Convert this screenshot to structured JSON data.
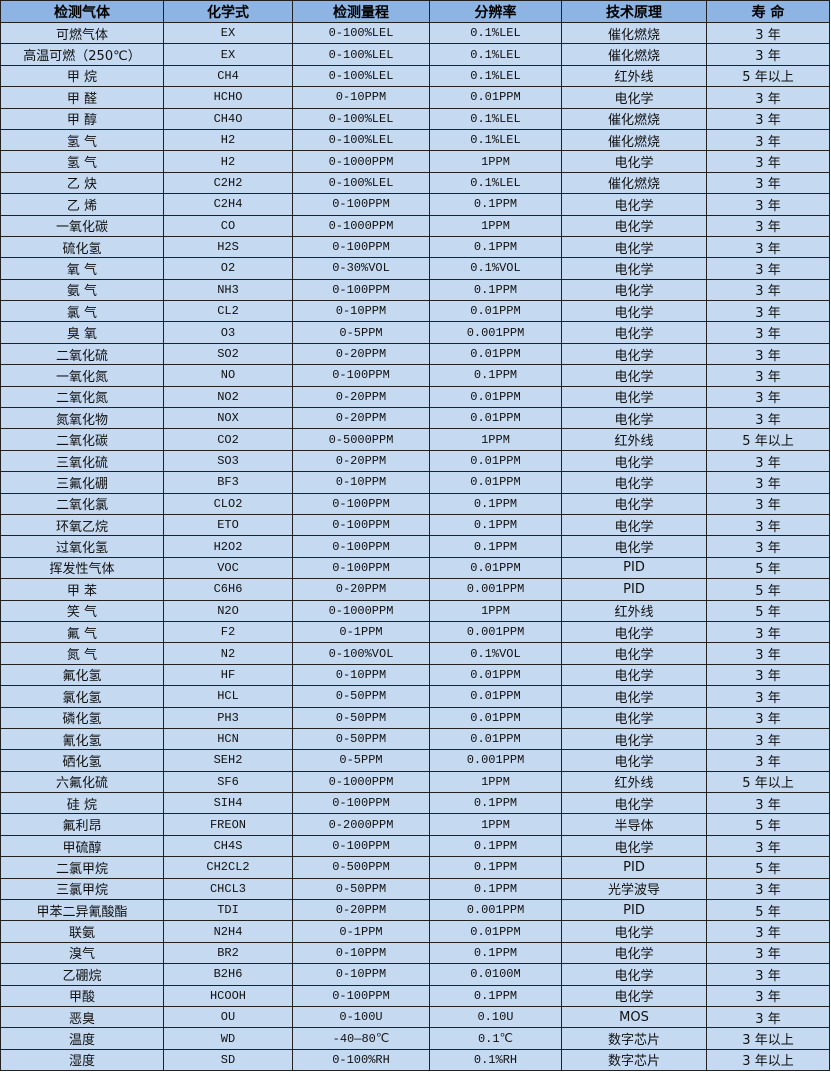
{
  "headers": [
    "检测气体",
    "化学式",
    "检测量程",
    "分辨率",
    "技术原理",
    "寿 命"
  ],
  "rows": [
    [
      "可燃气体",
      "EX",
      "0-100%LEL",
      "0.1%LEL",
      "催化燃烧",
      "3 年"
    ],
    [
      "高温可燃（250℃）",
      "EX",
      "0-100%LEL",
      "0.1%LEL",
      "催化燃烧",
      "3 年"
    ],
    [
      "甲 烷",
      "CH4",
      "0-100%LEL",
      "0.1%LEL",
      "红外线",
      "5 年以上"
    ],
    [
      "甲 醛",
      "HCHO",
      "0-10PPM",
      "0.01PPM",
      "电化学",
      "3 年"
    ],
    [
      "甲 醇",
      "CH4O",
      "0-100%LEL",
      "0.1%LEL",
      "催化燃烧",
      "3 年"
    ],
    [
      "氢 气",
      "H2",
      "0-100%LEL",
      "0.1%LEL",
      "催化燃烧",
      "3 年"
    ],
    [
      "氢 气",
      "H2",
      "0-1000PPM",
      "1PPM",
      "电化学",
      "3 年"
    ],
    [
      "乙 炔",
      "C2H2",
      "0-100%LEL",
      "0.1%LEL",
      "催化燃烧",
      "3 年"
    ],
    [
      "乙 烯",
      "C2H4",
      "0-100PPM",
      "0.1PPM",
      "电化学",
      "3 年"
    ],
    [
      "一氧化碳",
      "CO",
      "0-1000PPM",
      "1PPM",
      "电化学",
      "3 年"
    ],
    [
      "硫化氢",
      "H2S",
      "0-100PPM",
      "0.1PPM",
      "电化学",
      "3 年"
    ],
    [
      "氧 气",
      "O2",
      "0-30%VOL",
      "0.1%VOL",
      "电化学",
      "3 年"
    ],
    [
      "氨 气",
      "NH3",
      "0-100PPM",
      "0.1PPM",
      "电化学",
      "3 年"
    ],
    [
      "氯 气",
      "CL2",
      "0-10PPM",
      "0.01PPM",
      "电化学",
      "3 年"
    ],
    [
      "臭 氧",
      "O3",
      "0-5PPM",
      "0.001PPM",
      "电化学",
      "3 年"
    ],
    [
      "二氧化硫",
      "SO2",
      "0-20PPM",
      "0.01PPM",
      "电化学",
      "3 年"
    ],
    [
      "一氧化氮",
      "NO",
      "0-100PPM",
      "0.1PPM",
      "电化学",
      "3 年"
    ],
    [
      "二氧化氮",
      "NO2",
      "0-20PPM",
      "0.01PPM",
      "电化学",
      "3 年"
    ],
    [
      "氮氧化物",
      "NOX",
      "0-20PPM",
      "0.01PPM",
      "电化学",
      "3 年"
    ],
    [
      "二氧化碳",
      "CO2",
      "0-5000PPM",
      "1PPM",
      "红外线",
      "5 年以上"
    ],
    [
      "三氧化硫",
      "SO3",
      "0-20PPM",
      "0.01PPM",
      "电化学",
      "3 年"
    ],
    [
      "三氟化硼",
      "BF3",
      "0-10PPM",
      "0.01PPM",
      "电化学",
      "3 年"
    ],
    [
      "二氧化氯",
      "CLO2",
      "0-100PPM",
      "0.1PPM",
      "电化学",
      "3 年"
    ],
    [
      "环氧乙烷",
      "ETO",
      "0-100PPM",
      "0.1PPM",
      "电化学",
      "3 年"
    ],
    [
      "过氧化氢",
      "H2O2",
      "0-100PPM",
      "0.1PPM",
      "电化学",
      "3 年"
    ],
    [
      "挥发性气体",
      "VOC",
      "0-100PPM",
      "0.01PPM",
      "PID",
      "5 年"
    ],
    [
      "甲 苯",
      "C6H6",
      "0-20PPM",
      "0.001PPM",
      "PID",
      "5 年"
    ],
    [
      "笑 气",
      "N2O",
      "0-1000PPM",
      "1PPM",
      "红外线",
      "5 年"
    ],
    [
      "氟 气",
      "F2",
      "0-1PPM",
      "0.001PPM",
      "电化学",
      "3 年"
    ],
    [
      "氮 气",
      "N2",
      "0-100%VOL",
      "0.1%VOL",
      "电化学",
      "3 年"
    ],
    [
      "氟化氢",
      "HF",
      "0-10PPM",
      "0.01PPM",
      "电化学",
      "3 年"
    ],
    [
      "氯化氢",
      "HCL",
      "0-50PPM",
      "0.01PPM",
      "电化学",
      "3 年"
    ],
    [
      "磷化氢",
      "PH3",
      "0-50PPM",
      "0.01PPM",
      "电化学",
      "3 年"
    ],
    [
      "氰化氢",
      "HCN",
      "0-50PPM",
      "0.01PPM",
      "电化学",
      "3 年"
    ],
    [
      "硒化氢",
      "SEH2",
      "0-5PPM",
      "0.001PPM",
      "电化学",
      "3 年"
    ],
    [
      "六氟化硫",
      "SF6",
      "0-1000PPM",
      "1PPM",
      "红外线",
      "5 年以上"
    ],
    [
      "硅 烷",
      "SIH4",
      "0-100PPM",
      "0.1PPM",
      "电化学",
      "3 年"
    ],
    [
      "氟利昂",
      "FREON",
      "0-2000PPM",
      "1PPM",
      "半导体",
      "5 年"
    ],
    [
      "甲硫醇",
      "CH4S",
      "0-100PPM",
      "0.1PPM",
      "电化学",
      "3 年"
    ],
    [
      "二氯甲烷",
      "CH2CL2",
      "0-500PPM",
      "0.1PPM",
      "PID",
      "5 年"
    ],
    [
      "三氯甲烷",
      "CHCL3",
      "0-50PPM",
      "0.1PPM",
      "光学波导",
      "3 年"
    ],
    [
      "甲苯二异氰酸酯",
      "TDI",
      "0-20PPM",
      "0.001PPM",
      "PID",
      "5 年"
    ],
    [
      "联氨",
      "N2H4",
      "0-1PPM",
      "0.01PPM",
      "电化学",
      "3 年"
    ],
    [
      "溴气",
      "BR2",
      "0-10PPM",
      "0.1PPM",
      "电化学",
      "3 年"
    ],
    [
      "乙硼烷",
      "B2H6",
      "0-10PPM",
      "0.0100M",
      "电化学",
      "3 年"
    ],
    [
      "甲酸",
      "HCOOH",
      "0-100PPM",
      "0.1PPM",
      "电化学",
      "3 年"
    ],
    [
      "恶臭",
      "OU",
      "0-100U",
      "0.10U",
      "MOS",
      "3 年"
    ],
    [
      "温度",
      "WD",
      "-40—80℃",
      "0.1℃",
      "数字芯片",
      "3 年以上"
    ],
    [
      "湿度",
      "SD",
      "0-100%RH",
      "0.1%RH",
      "数字芯片",
      "3 年以上"
    ]
  ],
  "colors": {
    "header_bg": "#8db4e2",
    "row_bg": "#c5d9f1"
  }
}
